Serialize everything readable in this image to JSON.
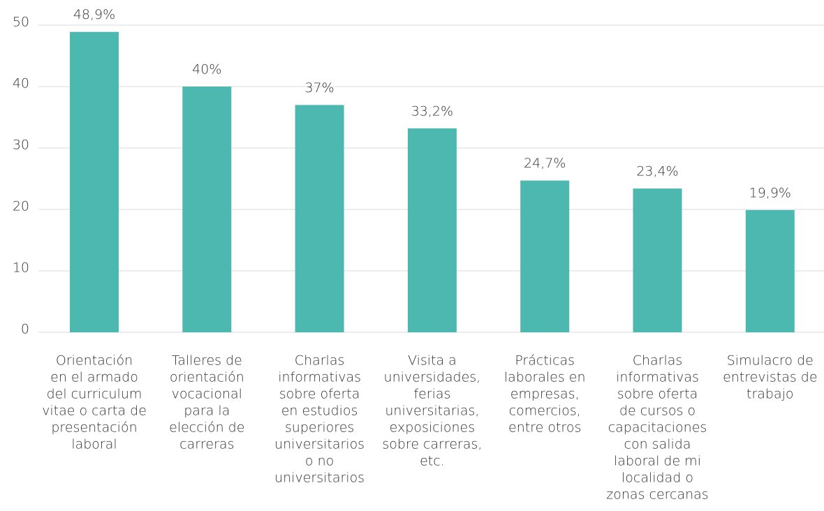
{
  "chart_data": {
    "type": "bar",
    "categories": [
      [
        "Orientación",
        "en el armado",
        "del curriculum",
        "vitae o carta de",
        "presentación",
        "laboral"
      ],
      [
        "Talleres de",
        "orientación",
        "vocacional",
        "para la",
        "elección de",
        "carreras"
      ],
      [
        "Charlas",
        "informativas",
        "sobre oferta",
        "en estudios",
        "superiores",
        "universitarios",
        "o no",
        "universitarios"
      ],
      [
        "Visita a",
        "universidades,",
        "ferias",
        "universitarias,",
        "exposiciones",
        "sobre carreras,",
        "etc."
      ],
      [
        "Prácticas",
        "laborales en",
        "empresas,",
        "comercios,",
        "entre otros"
      ],
      [
        "Charlas",
        "informativas",
        "sobre oferta",
        "de cursos o",
        "capacitaciones",
        "con salida",
        "laboral de mi",
        "localidad o",
        "zonas cercanas"
      ],
      [
        "Simulacro de",
        "entrevistas de",
        "trabajo"
      ]
    ],
    "values": [
      48.9,
      40,
      37,
      33.2,
      24.7,
      23.4,
      19.9
    ],
    "value_labels": [
      "48,9%",
      "40%",
      "37%",
      "33,2%",
      "24,7%",
      "23,4%",
      "19,9%"
    ],
    "color": "#4db8b0",
    "ylim": [
      0,
      50
    ],
    "yticks": [
      0,
      10,
      20,
      30,
      40,
      50
    ],
    "grid": true
  }
}
